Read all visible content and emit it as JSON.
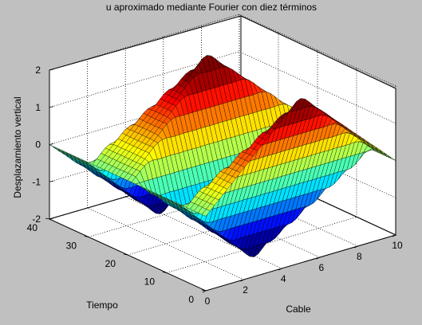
{
  "chart_data": {
    "type": "surface",
    "title": "u aproximado mediante Fourier con diez términos",
    "xlabel": "Cable",
    "ylabel": "Tiempo",
    "zlabel": "Desplazamiento vertical",
    "xlim": [
      0,
      10
    ],
    "ylim": [
      0,
      40
    ],
    "zlim": [
      -2,
      2
    ],
    "x_ticks": [
      "0",
      "2",
      "4",
      "6",
      "8",
      "10"
    ],
    "y_ticks": [
      "0",
      "10",
      "20",
      "30",
      "40"
    ],
    "z_ticks": [
      "-2",
      "-1",
      "0",
      "1",
      "2"
    ],
    "series": [
      {
        "description_points": [
          {
            "x": 5,
            "y": 0,
            "z": -2
          },
          {
            "x": 5,
            "y": 6,
            "z": 0
          },
          {
            "x": 5,
            "y": 12,
            "z": 2
          },
          {
            "x": 5,
            "y": 18,
            "z": 0
          },
          {
            "x": 5,
            "y": 24,
            "z": -2
          },
          {
            "x": 5,
            "y": 30,
            "z": 0
          },
          {
            "x": 5,
            "y": 36,
            "z": 2
          },
          {
            "x": 5,
            "y": 40,
            "z": 0.7
          }
        ]
      }
    ],
    "colormap": "jet",
    "grid": true
  }
}
